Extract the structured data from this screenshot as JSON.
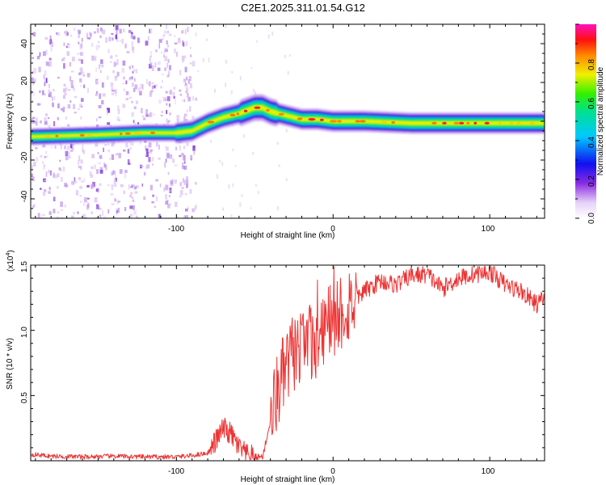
{
  "title": "C2E1.2025.311.01.54.G12",
  "spectrogram": {
    "xlabel": "Height of straight line (km)",
    "ylabel": "Frequency (Hz)",
    "xlim": [
      -193,
      135
    ],
    "ylim": [
      -50,
      50
    ],
    "xticks": [
      "-100",
      "0",
      "100"
    ],
    "yticks": [
      "40",
      "20",
      "0",
      "-20",
      "-40"
    ],
    "colorbar": {
      "label": "Normalized spectral amplitude",
      "ticks": [
        "0.0",
        "0.2",
        "0.4",
        "0.6",
        "0.8"
      ],
      "range": [
        0,
        1
      ]
    }
  },
  "chart_data": [
    {
      "type": "heatmap",
      "title": "C2E1.2025.311.01.54.G12",
      "xlabel": "Height of straight line (km)",
      "ylabel": "Frequency (Hz)",
      "xlim": [
        -193,
        135
      ],
      "ylim": [
        -50,
        50
      ],
      "colorbar_label": "Normalized spectral amplitude",
      "ridge": {
        "x": [
          -193,
          -150,
          -120,
          -100,
          -90,
          -80,
          -70,
          -60,
          -50,
          -45,
          -40,
          -30,
          -20,
          -10,
          0,
          20,
          50,
          80,
          100,
          120,
          135
        ],
        "frequency": [
          -8,
          -7,
          -6,
          -6,
          -5,
          -1,
          2,
          4,
          7,
          7,
          5,
          3,
          1,
          1,
          0,
          0,
          -1,
          -1,
          -1,
          -1,
          -1
        ]
      }
    },
    {
      "type": "line",
      "xlabel": "Height of straight line (km)",
      "ylabel": "SNR (10 * v/v)",
      "scale_label": "(x10",
      "scale_exp": "4",
      "xlim": [
        -193,
        135
      ],
      "ylim": [
        0,
        15000
      ],
      "xticks": [
        "-100",
        "0",
        "100"
      ],
      "yticks": [
        "1.5",
        "1.0",
        "0.5"
      ],
      "series": [
        {
          "name": "SNR",
          "color": "#ee3333",
          "x": [
            -193,
            -180,
            -160,
            -140,
            -120,
            -100,
            -90,
            -80,
            -75,
            -70,
            -65,
            -60,
            -55,
            -50,
            -45,
            -40,
            -35,
            -30,
            -25,
            -20,
            -15,
            -10,
            -5,
            0,
            5,
            10,
            20,
            30,
            40,
            50,
            60,
            70,
            80,
            90,
            100,
            110,
            120,
            130,
            135
          ],
          "y": [
            500,
            350,
            300,
            350,
            300,
            300,
            400,
            600,
            1500,
            2500,
            2000,
            1000,
            400,
            300,
            300,
            3000,
            5500,
            7000,
            8500,
            8000,
            9000,
            9500,
            10500,
            11000,
            11500,
            12000,
            13000,
            13800,
            13500,
            14200,
            14300,
            13200,
            14000,
            14300,
            14500,
            13500,
            13000,
            12000,
            12500
          ]
        }
      ]
    }
  ],
  "snr": {
    "xlabel": "Height of straight line (km)",
    "ylabel": "SNR (10 * v/v)",
    "xticks": [
      "-100",
      "0",
      "100"
    ],
    "yticks": [
      "1.5",
      "1.0",
      "0.5"
    ],
    "scale_label": "(x10",
    "scale_exp": "4"
  }
}
